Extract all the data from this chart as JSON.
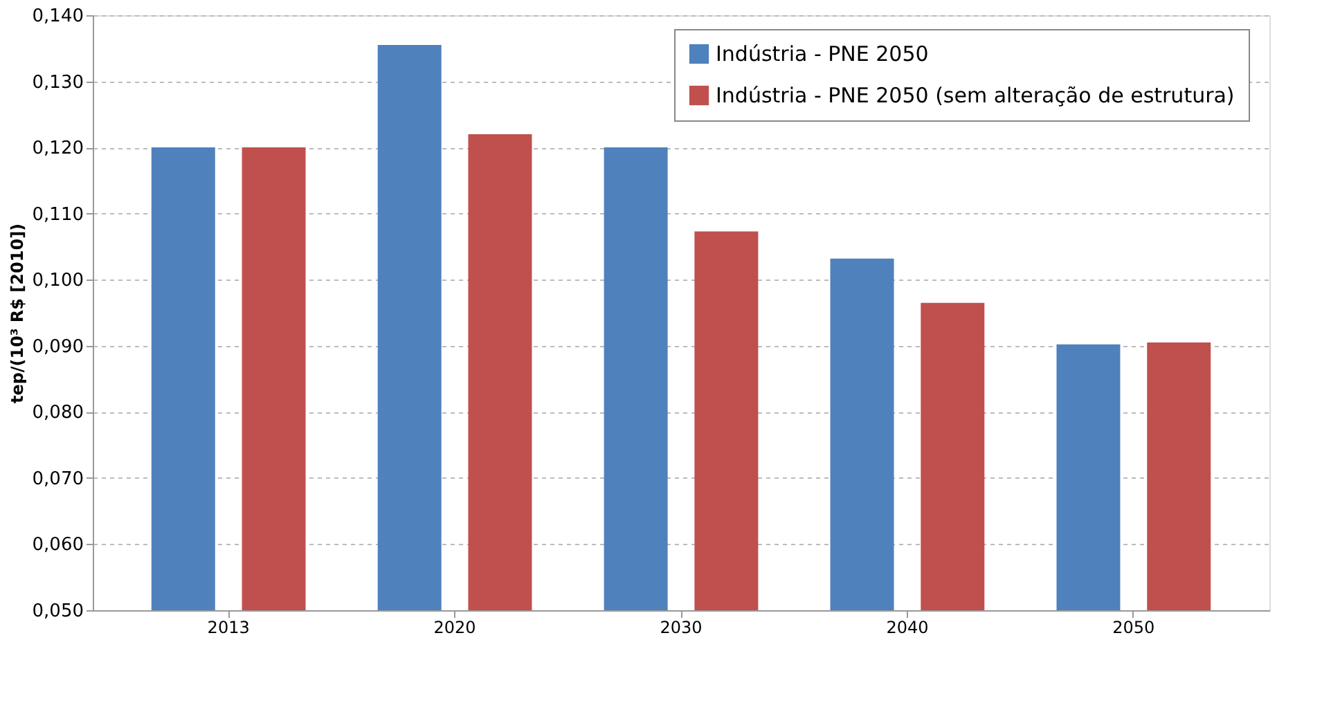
{
  "chart_data": {
    "type": "bar",
    "ylabel": "tep/(10³ R$ [2010])",
    "categories": [
      "2013",
      "2020",
      "2030",
      "2040",
      "2050"
    ],
    "series": [
      {
        "name": "Indústria - PNE 2050",
        "color": "#4f81bd",
        "values": [
          0.12,
          0.1355,
          0.12,
          0.1032,
          0.0902
        ]
      },
      {
        "name": "Indústria - PNE 2050 (sem alteração de estrutura)",
        "color": "#c0504d",
        "values": [
          0.12,
          0.122,
          0.1073,
          0.0965,
          0.0905
        ]
      }
    ],
    "ylim": [
      0.05,
      0.14
    ],
    "yticks": [
      {
        "value": 0.05,
        "label": "0,050"
      },
      {
        "value": 0.06,
        "label": "0,060"
      },
      {
        "value": 0.07,
        "label": "0,070"
      },
      {
        "value": 0.08,
        "label": "0,080"
      },
      {
        "value": 0.09,
        "label": "0,090"
      },
      {
        "value": 0.1,
        "label": "0,100"
      },
      {
        "value": 0.11,
        "label": "0,110"
      },
      {
        "value": 0.12,
        "label": "0,120"
      },
      {
        "value": 0.13,
        "label": "0,130"
      },
      {
        "value": 0.14,
        "label": "0,140"
      }
    ],
    "grid": "y",
    "legend": "top right"
  }
}
